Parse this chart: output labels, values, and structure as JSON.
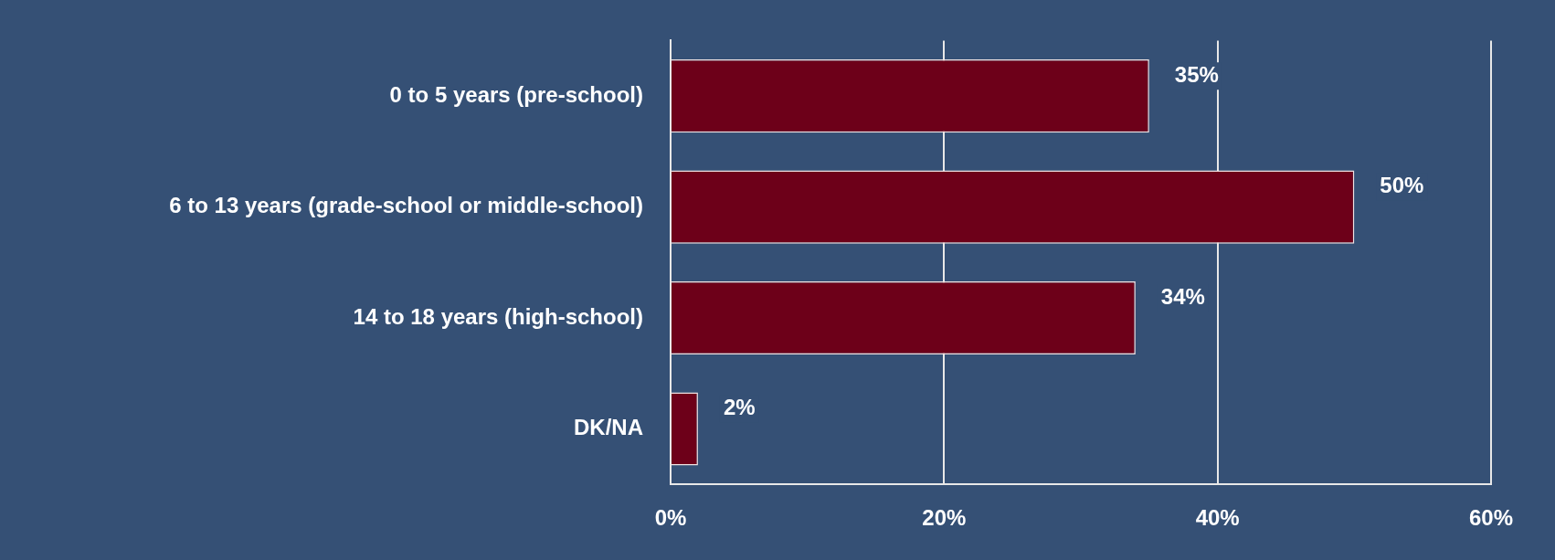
{
  "chart_data": {
    "type": "bar",
    "orientation": "horizontal",
    "categories": [
      "0 to 5 years (pre-school)",
      "6 to 13 years (grade-school or middle-school)",
      "14 to 18 years (high-school)",
      "DK/NA"
    ],
    "values": [
      35,
      50,
      34,
      2
    ],
    "value_labels": [
      "35%",
      "50%",
      "34%",
      "2%"
    ],
    "color": "#6d0019",
    "xlim": [
      0,
      60
    ],
    "xticks": [
      {
        "value": 0,
        "label": "0%"
      },
      {
        "value": 20,
        "label": "20%"
      },
      {
        "value": 40,
        "label": "40%"
      },
      {
        "value": 60,
        "label": "60%"
      }
    ],
    "grid": "x",
    "legend": false
  }
}
